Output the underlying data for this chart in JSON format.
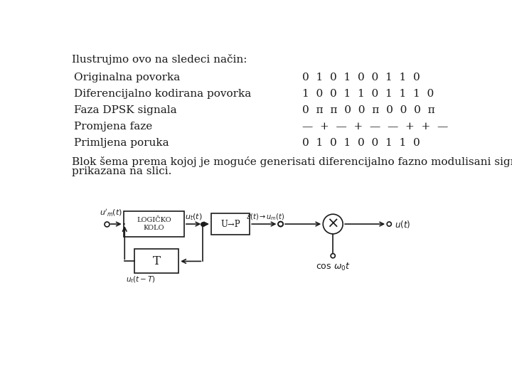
{
  "title_line": "Ilustrujmo ovo na sledeci način:",
  "rows": [
    {
      "label": "Originalna povorka",
      "values": "0  1  0  1  0  0  1  1  0"
    },
    {
      "label": "Diferencijalno kodirana povorka",
      "values": "1  0  0  1  1  0  1  1  1  0"
    },
    {
      "label": "Faza DPSK signala",
      "values": "0  π  π  0  0  π  0  0  0  π"
    },
    {
      "label": "Promjena faze",
      "values": "—  +  —  +  —  —  +  +  —"
    },
    {
      "label": "Primljena poruka",
      "values": "0  1  0  1  0  0  1  1  0"
    }
  ],
  "blok_text_1": "Blok šema prema kojoj je moguće generisati diferencijalno fazno modulisani signal je",
  "blok_text_2": "prikazana na slici.",
  "bg_color": "#ffffff",
  "text_color": "#1a1a1a",
  "font_size": 11
}
